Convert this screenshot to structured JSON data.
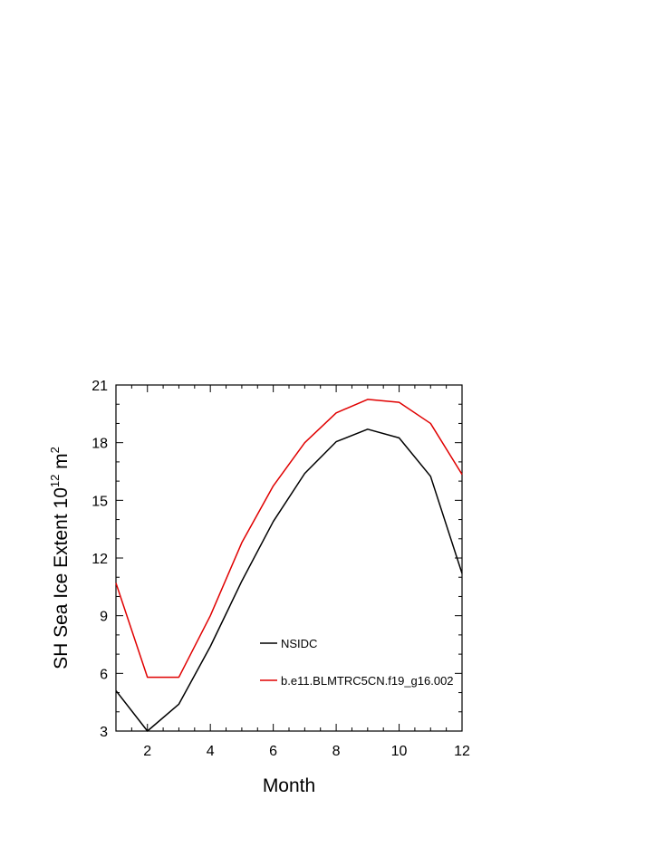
{
  "chart_data": {
    "type": "line",
    "title": "",
    "xlabel": "Month",
    "ylabel": {
      "main": "SH Sea Ice Extent 10",
      "exponent": "12",
      "unit": " m",
      "unit_exponent": "2"
    },
    "x": [
      1,
      2,
      3,
      4,
      5,
      6,
      7,
      8,
      9,
      10,
      11,
      12
    ],
    "xlim": [
      1,
      12
    ],
    "ylim": [
      3,
      21
    ],
    "xticks": [
      2,
      4,
      6,
      8,
      10,
      12
    ],
    "yticks": [
      3,
      6,
      9,
      12,
      15,
      18,
      21
    ],
    "grid": false,
    "legend_position": "center-right",
    "series": [
      {
        "name": "NSIDC",
        "color": "#000000",
        "values": [
          5.1,
          3.0,
          4.4,
          7.4,
          10.8,
          13.9,
          16.4,
          18.05,
          18.7,
          18.25,
          16.25,
          11.2
        ]
      },
      {
        "name": "b.e11.BLMTRC5CN.f19_g16.002",
        "color": "#e00000",
        "values": [
          10.7,
          5.8,
          5.8,
          9.0,
          12.8,
          15.75,
          18.0,
          19.55,
          20.25,
          20.1,
          19.0,
          16.35
        ]
      }
    ]
  }
}
